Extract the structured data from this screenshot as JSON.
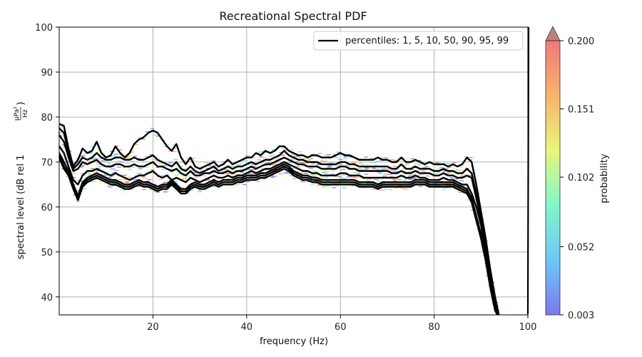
{
  "chart_data": {
    "type": "line",
    "title": "Recreational Spectral PDF",
    "xlabel": "frequency (Hz)",
    "ylabel_main": "spectral level (dB rel 1",
    "ylabel_num": "μPa²",
    "ylabel_den": "Hz",
    "ylabel_close": ")",
    "xlim": [
      0,
      100
    ],
    "ylim": [
      36,
      100
    ],
    "xticks": [
      20,
      40,
      60,
      80,
      100
    ],
    "yticks": [
      40,
      50,
      60,
      70,
      80,
      90,
      100
    ],
    "grid": true,
    "legend": {
      "placement": "top-right",
      "label": "percentiles: 1, 5, 10, 50, 90, 95, 99"
    },
    "colorbar": {
      "label": "probability",
      "ticks": [
        "0.003",
        "0.052",
        "0.102",
        "0.151",
        "0.200"
      ],
      "range": [
        0.003,
        0.2
      ],
      "extend": "max",
      "colors": [
        "#7a7aee",
        "#6ec7f7",
        "#7ff7c8",
        "#e9f57a",
        "#f9b36e",
        "#ee7a7a"
      ]
    },
    "x": [
      0,
      1,
      2,
      3,
      4,
      5,
      6,
      7,
      8,
      9,
      10,
      11,
      12,
      13,
      14,
      15,
      16,
      17,
      18,
      19,
      20,
      21,
      22,
      23,
      24,
      25,
      26,
      27,
      28,
      29,
      30,
      31,
      32,
      33,
      34,
      35,
      36,
      37,
      38,
      39,
      40,
      41,
      42,
      43,
      44,
      45,
      46,
      47,
      48,
      49,
      50,
      51,
      52,
      53,
      54,
      55,
      56,
      57,
      58,
      59,
      60,
      61,
      62,
      63,
      64,
      65,
      66,
      67,
      68,
      69,
      70,
      71,
      72,
      73,
      74,
      75,
      76,
      77,
      78,
      79,
      80,
      81,
      82,
      83,
      84,
      85,
      86,
      87,
      88,
      89,
      90,
      91,
      92,
      93,
      94
    ],
    "series": [
      {
        "name": "99",
        "values": [
          78.5,
          78,
          73,
          69,
          70.5,
          73,
          72,
          72.5,
          74.5,
          72,
          71,
          71.5,
          73.5,
          72,
          71,
          72,
          74,
          75,
          75.5,
          76.5,
          77,
          76.5,
          75,
          73.5,
          72.5,
          74,
          71,
          69.5,
          71,
          69,
          68.5,
          69,
          69.5,
          70,
          69,
          69.5,
          70.5,
          69.5,
          70,
          70.5,
          71,
          71,
          72,
          71.5,
          72.5,
          72,
          72.5,
          73.5,
          73.5,
          72.5,
          72,
          71.5,
          71.5,
          71,
          71.5,
          71.5,
          71,
          71,
          71,
          71.5,
          72,
          71.5,
          71.5,
          71,
          70.5,
          70.5,
          70.5,
          70.5,
          71,
          70.5,
          70.5,
          70,
          70,
          71,
          70,
          70,
          70.5,
          70,
          69.5,
          70,
          69.5,
          69.5,
          69.5,
          69,
          69.5,
          69,
          69.5,
          71,
          70,
          65,
          59,
          53,
          46,
          40,
          35
        ]
      },
      {
        "name": "95",
        "values": [
          77.5,
          76.5,
          72,
          68.5,
          69.5,
          71,
          70.5,
          71,
          72,
          71,
          70.5,
          70.5,
          71,
          71,
          70.5,
          70.5,
          71,
          70.5,
          70.5,
          71,
          71.5,
          70.5,
          70,
          69.5,
          69,
          70,
          68.5,
          68,
          69,
          68,
          67.5,
          68,
          68.5,
          69,
          68,
          68.5,
          69,
          68.5,
          69,
          69,
          69.5,
          70,
          69.5,
          70,
          70.5,
          70.5,
          71,
          71.5,
          72.5,
          71.5,
          71,
          70.5,
          70.5,
          70,
          70,
          70,
          69.5,
          69.5,
          69.5,
          69.5,
          70,
          70,
          69.5,
          69.5,
          69,
          69,
          69,
          69,
          69,
          69,
          69,
          68.5,
          68.5,
          69.5,
          68.5,
          68.5,
          69,
          68.5,
          68.5,
          68.5,
          68,
          68,
          68.5,
          68,
          68,
          67.5,
          67.5,
          68.5,
          67.5,
          63,
          58,
          52,
          45,
          39,
          35
        ]
      },
      {
        "name": "90",
        "values": [
          76,
          74.5,
          71,
          68,
          68.5,
          70,
          69.5,
          70,
          70.5,
          69.5,
          69,
          69,
          69.5,
          69.5,
          69,
          69,
          69.5,
          69,
          69,
          69.5,
          70,
          69,
          69,
          68.5,
          68,
          68.5,
          67.5,
          67,
          68,
          67,
          67,
          67.5,
          67.5,
          68,
          67.5,
          67.5,
          68,
          67.5,
          68,
          68,
          68.5,
          69,
          68.5,
          69,
          69.5,
          69.5,
          70,
          70.5,
          71,
          70.5,
          70,
          69.5,
          69.5,
          69,
          69,
          69,
          68.5,
          68.5,
          68.5,
          68.5,
          69,
          69,
          68.5,
          68.5,
          68,
          68,
          68,
          68,
          68,
          68,
          68,
          67.5,
          67.5,
          68,
          67.5,
          67.5,
          68,
          67.5,
          67.5,
          67.5,
          67,
          67,
          67.5,
          67,
          67,
          66.5,
          66.5,
          67,
          66.5,
          62,
          57,
          51,
          45,
          39,
          35
        ]
      },
      {
        "name": "50",
        "values": [
          73.5,
          72,
          69,
          66,
          65,
          67,
          68,
          68,
          68.5,
          68,
          67.5,
          67,
          67.5,
          67,
          66.5,
          66,
          66.5,
          67,
          67,
          67.5,
          68,
          67,
          66.5,
          67,
          66,
          66.5,
          66,
          65.5,
          66.5,
          66,
          65.5,
          66,
          66.5,
          67,
          66.5,
          66.5,
          67,
          66.5,
          67,
          67,
          67.5,
          68,
          67.5,
          68,
          68.5,
          68.5,
          69,
          69.5,
          70,
          69.5,
          69,
          68.5,
          68,
          68,
          67.5,
          67.5,
          67,
          67,
          67,
          67,
          67.5,
          67.5,
          67,
          67,
          67,
          66.5,
          66.5,
          66.5,
          66.5,
          66.5,
          66.5,
          66.5,
          66.5,
          67,
          66.5,
          66.5,
          67,
          66.5,
          66.5,
          66,
          66,
          66,
          66.5,
          66,
          66,
          65.5,
          65,
          65,
          63,
          60,
          56,
          50,
          44,
          38,
          35
        ]
      },
      {
        "name": "10",
        "values": [
          72,
          70,
          68,
          65,
          62.5,
          65.5,
          66.5,
          67,
          67.5,
          67,
          66.5,
          66,
          66,
          65.5,
          65,
          65,
          65.5,
          66,
          65.5,
          65.5,
          65,
          64.5,
          65,
          65,
          66,
          65,
          64,
          64,
          65,
          65.5,
          65,
          65,
          65.5,
          66,
          65.5,
          66,
          66,
          66,
          66.5,
          66.5,
          67,
          67,
          67,
          67.5,
          67.5,
          68,
          68.5,
          69,
          69.5,
          69,
          68,
          67.5,
          67,
          67,
          66.5,
          66.5,
          66,
          66,
          66,
          66,
          66,
          66,
          66,
          66,
          65.5,
          65.5,
          65.5,
          65.5,
          65,
          65.5,
          65.5,
          65.5,
          65.5,
          65.5,
          65.5,
          65.5,
          66,
          66,
          66,
          65.5,
          65.5,
          65.5,
          65.5,
          65.5,
          65.5,
          65,
          64.5,
          64,
          62,
          58,
          54,
          49,
          43,
          38,
          35
        ]
      },
      {
        "name": "5",
        "values": [
          71.5,
          69,
          67.5,
          64.5,
          62,
          65,
          66,
          66.5,
          67,
          66.5,
          66,
          65.5,
          65.5,
          65,
          64.5,
          64.5,
          65,
          65.5,
          65,
          65,
          64.5,
          64,
          64.5,
          64.5,
          65.5,
          64.5,
          63.5,
          63.5,
          64.5,
          65,
          64.5,
          64.5,
          65,
          65.5,
          65,
          65.5,
          65.5,
          65.5,
          66,
          66,
          66.5,
          66.5,
          66.5,
          67,
          67,
          67.5,
          68,
          68.5,
          69,
          68.5,
          67.5,
          67,
          66.5,
          66.5,
          66,
          66,
          65.5,
          65.5,
          65.5,
          65.5,
          65.5,
          65.5,
          65.5,
          65.5,
          65,
          65,
          65,
          65,
          64.5,
          65,
          65,
          65,
          65,
          65,
          65,
          65,
          65.5,
          65.5,
          65.5,
          65,
          65,
          65,
          65,
          65,
          65,
          64.5,
          64,
          63.5,
          61.5,
          57.5,
          53.5,
          48.5,
          42.5,
          37.5,
          35
        ]
      },
      {
        "name": "1",
        "values": [
          71,
          68.5,
          67,
          64,
          61.5,
          64.5,
          65.5,
          66,
          66.5,
          66,
          65.5,
          65,
          65,
          64.5,
          64,
          64,
          64.5,
          65,
          64.5,
          64.5,
          64,
          63.5,
          64,
          64,
          65,
          64,
          63,
          63,
          64,
          64.5,
          64,
          64,
          64.5,
          65,
          64.5,
          65,
          65,
          65,
          65.5,
          65.5,
          66,
          66,
          66,
          66.5,
          66.5,
          67,
          67.5,
          68,
          68.5,
          68,
          67,
          66.5,
          66,
          66,
          65.5,
          65.5,
          65,
          65,
          65,
          65,
          65,
          65,
          65,
          65,
          64.5,
          64.5,
          64.5,
          64.5,
          64,
          64.5,
          64.5,
          64.5,
          64.5,
          64.5,
          64.5,
          64.5,
          65,
          65,
          65,
          64.5,
          64.5,
          64.5,
          64.5,
          64.5,
          64.5,
          64,
          63.5,
          63,
          61,
          57,
          53,
          48,
          42,
          37,
          35
        ]
      }
    ]
  }
}
